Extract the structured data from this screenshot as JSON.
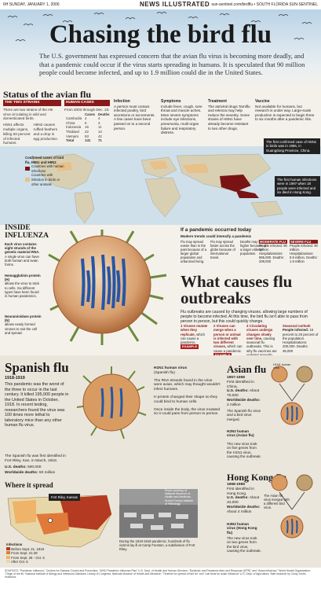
{
  "masthead": {
    "left": "6H  SUNDAY, JANUARY 1, 2006",
    "center": "NEWS ILLUSTRATED",
    "right": "sun-sentinel.com/birdflu • SOUTH FLORIDA SUN-SENTINEL"
  },
  "headline": "Chasing the bird flu",
  "dek": "The U.S. government has expressed concern that the avian flu virus is becoming more deadly, and that a pandemic could occur if the virus starts spreading in humans. It is speculated that 90 million people could become infected, and up to 1.9 million could die in the United States.",
  "status": {
    "title": "Status of the avian flu",
    "two_strains": {
      "head": "THE TWO STRAINS",
      "text": "There are two strains of the H5 virus circulating in wild and domesticated birds.",
      "h5n1": "H5N1 affects multiple organs, killing 50 percent of infected humans.",
      "h5n2": "H5N2 causes ruffled feathers and a drop in egg production."
    },
    "human_cases": {
      "head": "HUMAN CASES",
      "sub": "From 2003 through Dec. 23.",
      "cols": [
        "",
        "Cases",
        "Deaths"
      ],
      "rows": [
        [
          "Cambodia",
          "4",
          "4"
        ],
        [
          "China",
          "6",
          "3"
        ],
        [
          "Indonesia",
          "16",
          "11"
        ],
        [
          "Thailand",
          "22",
          "14"
        ],
        [
          "Vietnam",
          "93",
          "42"
        ],
        [
          "Total",
          "141",
          "71"
        ]
      ]
    },
    "infection": {
      "head": "Infection",
      "text": "A person must contact infected poultry, bird secretions or excrements. A few cases have been passed on to a second person."
    },
    "symptoms": {
      "head": "Symptoms",
      "text": "Include fever, cough, sore throat and muscle aches. More severe symptoms include eye infections, pneumonia, multi-organ failure and respiratory distress."
    },
    "treatment": {
      "head": "Treatment",
      "text": "The antiviral drugs Tamiflu and relenza may help reduce the severity. Some strains of H5N1 have already become resistant to two other drugs."
    },
    "vaccine": {
      "head": "Vaccine",
      "text": "Not available for humans, but research is under way. Large-scale production is expected to begin three to six months after a pandemic hits."
    }
  },
  "map": {
    "legend_title": "Confirmed cases of bird flu, H5N1 and H5N2",
    "legend": [
      "Countries with human infections",
      "Countries with infection in birds or other animals"
    ],
    "callout1": "The first confirmed case of H5N1 in birds was in 1996, in Guangdong Province, China.",
    "callout2": "The first human infections were in 1997 when 18 people were infected and six died in Hong Kong."
  },
  "inside": {
    "title": "INSIDE INFLUENZA",
    "intro": "Each virus contains eight strands of the genetic material RNA.",
    "intro2": "A single virus can have both human and avian forms.",
    "hemag": {
      "head": "Hemagglutinin protein (H)",
      "text": "allows the virus to stick to cells. Six different types have been found in human pandemics."
    },
    "neura": {
      "head": "Neuraminidase protein (N)",
      "text": "allows newly formed viruses to exit the cell and spread."
    }
  },
  "pandemic": {
    "title": "If a pandemic occurred today",
    "sub": "Modern trends could intensify a pandemic",
    "cols": [
      "Flu may spread easier than in the past because of a larger global population and urbanized living.",
      "Flu may spread faster across the globe because of international travel.",
      "Deaths may be higher because of a larger elderly population."
    ],
    "moderate": {
      "tag": "MODERATE FLU",
      "text": "People infected: 90 million. Hospitalizations: 865,000. Deaths: 209,000"
    },
    "severe": {
      "tag": "SEVERE FLU",
      "text": "People infected: 90 million. Hospitalizations: 9.9 million. Deaths: 1.9 million"
    }
  },
  "what": {
    "title": "What causes flu outbreaks",
    "dek": "Flu outbreaks are caused by changing viruses, allowing large numbers of people to become infected. At this time, the bird flu isn't able to pass from person to person, but this could quickly change.",
    "steps": [
      {
        "num": "1",
        "head": "Viruses mutate when they replicate,",
        "text": "which can cause a pandemic.",
        "example": "EXAMPLE"
      },
      {
        "num": "2",
        "head": "Viruses can merge when a person or animal is infected with two different viruses,",
        "text": "which can cause a pandemic.",
        "example": "EXAMPLE"
      },
      {
        "num": "3",
        "head": "Circulating viruses undergo changes slowly over time,",
        "text": "causing seasonal flu outbreaks. This is why flu vaccines are updated annually.",
        "example": ""
      }
    ],
    "seasonal": {
      "head": "Seasonal outlook",
      "sub": "People infected:",
      "text": "15 percent to 20 percent of the population. Hospitalizations: 200,000. Deaths: 36,000"
    }
  },
  "spanish": {
    "title": "Spanish flu",
    "years": "1918-1919",
    "text": "This pandemic was the worst of the three to occur in the last century. It killed 195,000 people in the United States in October, 1918. In recent testing, researchers found the virus was 100 times more lethal to laboratory mice than any other human flu virus.",
    "virus_head": "H1N1 human virus",
    "virus_sub": "(Spanish flu)",
    "steps": [
      "The RNA strands found in the virus were avian, which may thought wouldn't infect humans.",
      "H protein changed their shape so they could bind to human cells.",
      "Once inside the body, the virus mutated so it could pass from person to person."
    ],
    "stats_intro": "The Spanish flu was first identified in Fort Riley, Kan. in March, 1918.",
    "us_deaths_label": "U.S. deaths:",
    "us_deaths": "500,000",
    "ww_deaths_label": "Worldwide deaths:",
    "ww_deaths": "50 million",
    "where": "Where it spread",
    "fort": "Fort Riley, Kansas",
    "legend_title": "Infections",
    "legend": [
      "Before Sept. 21, 1918",
      "From Sept. 21-28",
      "From Sept. 28 - Oct. 5",
      "After Oct. 5"
    ],
    "photo_caption": "During the 1918-1919 pandemic, hundreds of flu victims lay ill at Camp Funston, a subdivision of Fort Riley.",
    "photo_credit": "Photo courtesy of National Museum of Health and Medicine, Armed Forces Institute of Pathology"
  },
  "asian": {
    "title": "Asian flu",
    "years": "1957-1958",
    "text": "First identified in China.",
    "us_label": "U.S. deaths:",
    "us": "About 70,000",
    "ww_label": "Worldwide deaths:",
    "ww": "2 million",
    "h1n1": "H1N1 human virus",
    "h2n2": "H2N2 human virus (Asian flu)",
    "note1": "The Spanish flu virus and a bird virus merged.",
    "note2": "The new virus took on five genes from the H1N1 virus, causing the outbreak."
  },
  "hk": {
    "title": "Hong Kong flu",
    "years": "1968-1969",
    "text": "First identified in Hong Kong.",
    "us_label": "U.S. deaths:",
    "us": "About 34,000",
    "ww_label": "Worldwide deaths:",
    "ww": "About 4 million",
    "h3n2": "H3N2 human virus (Hong Kong flu)",
    "note1": "The Asian flu virus merged with a different bird virus.",
    "note2": "The new virus took on two genes from the bird virus, causing the outbreak."
  },
  "sources": "SOURCES: \"Pandemic Influenza,\" Centers for Disease Control and Prevention; \"WHO Pandemic Influenza Plan\" U.S. Dept. of Health and Human Services; \"Epidemic and Pandemic Alert and Response (EPR)\" and \"Avian influenza,\" World Health Organization; \"Origin of the flu\" National Institute of Allergy and Infectious Diseases; Library of Congress; National Museum of Health and Medicine; \"Timeline for spread of bird flu\" and \"Lab tests for avian influenza\" U.S. Dept. of Agriculture; Staff research by Cindy Jones-Hulfachor."
}
